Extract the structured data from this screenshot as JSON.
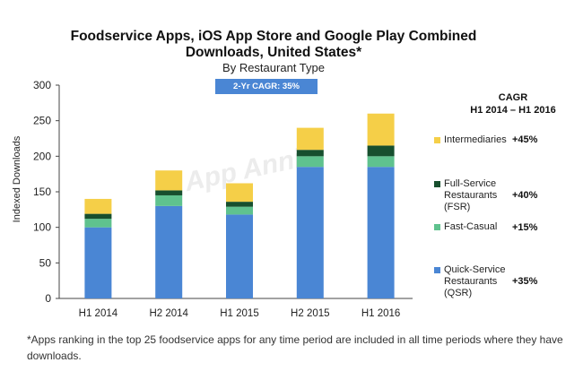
{
  "header": {
    "title_line1": "Foodservice Apps, iOS App Store and Google Play Combined",
    "title_line2": "Downloads, United States*",
    "subtitle": "By Restaurant Type",
    "cagr_badge": "2-Yr CAGR: 35%"
  },
  "watermark": "App Annie",
  "cagr_header": {
    "line1": "CAGR",
    "line2": "H1 2014 – H1 2016"
  },
  "legend": [
    {
      "label": "Intermediaries",
      "cagr": "+45%",
      "color": "#f5cf48"
    },
    {
      "label": "Full-Service Restaurants (FSR)",
      "cagr": "+40%",
      "color": "#174f2e"
    },
    {
      "label": "Fast-Casual",
      "cagr": "+15%",
      "color": "#5fc28e"
    },
    {
      "label": "Quick-Service Restaurants (QSR)",
      "cagr": "+35%",
      "color": "#4a86d4"
    }
  ],
  "footnote": "*Apps ranking in the top 25 foodservice apps for any time period are included in all time periods where they have downloads.",
  "chart_data": {
    "type": "bar",
    "stacked": true,
    "title": "Foodservice Apps, iOS App Store and Google Play Combined Downloads, United States*",
    "subtitle": "By Restaurant Type",
    "ylabel": "Indexed Downloads",
    "xlabel": "",
    "ylim": [
      0,
      300
    ],
    "yticks": [
      0,
      50,
      100,
      150,
      200,
      250,
      300
    ],
    "grid": false,
    "legend_position": "right",
    "categories": [
      "H1 2014",
      "H2 2014",
      "H1 2015",
      "H2 2015",
      "H1 2016"
    ],
    "series": [
      {
        "name": "Quick-Service Restaurants (QSR)",
        "color": "#4a86d4",
        "values": [
          100,
          130,
          118,
          185,
          185
        ]
      },
      {
        "name": "Fast-Casual",
        "color": "#5fc28e",
        "values": [
          12,
          15,
          11,
          15,
          15
        ]
      },
      {
        "name": "Full-Service Restaurants (FSR)",
        "color": "#174f2e",
        "values": [
          7,
          7,
          7,
          9,
          15
        ]
      },
      {
        "name": "Intermediaries",
        "color": "#f5cf48",
        "values": [
          21,
          28,
          26,
          31,
          45
        ]
      }
    ]
  }
}
